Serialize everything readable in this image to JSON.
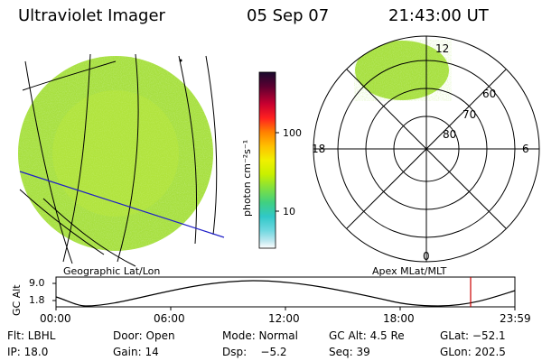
{
  "header": {
    "instrument": "Ultraviolet Imager",
    "date": "05 Sep 07",
    "time": "21:43:00 UT"
  },
  "colorbar": {
    "unit_label": "photon cm⁻²s⁻¹",
    "ticks": [
      "100",
      "10"
    ],
    "colors": [
      "#1a0a2e",
      "#5a0030",
      "#c80030",
      "#ff2020",
      "#ff8000",
      "#ffc000",
      "#f0f000",
      "#c8f000",
      "#80e040",
      "#40d080",
      "#30c8c8",
      "#70d8e0",
      "#c0e8f0",
      "#ffffff"
    ]
  },
  "left_panel": {
    "caption": "Geographic Lat/Lon"
  },
  "right_panel": {
    "caption": "Apex MLat/MLT",
    "mlt_labels": {
      "top": "12",
      "left": "18",
      "right": "6",
      "bottom": "0"
    },
    "mlat_labels": [
      "60",
      "70",
      "80"
    ]
  },
  "altitude_plot": {
    "ylabel": "GC Alt",
    "yticks": [
      "9.0",
      "1.8"
    ],
    "xticks": [
      "00:00",
      "06:00",
      "12:00",
      "18:00",
      "23:59"
    ],
    "marker_color": "#cc0000"
  },
  "status": {
    "flt": "Flt: LBHL",
    "door": "Door: Open",
    "mode": "Mode: Normal",
    "gc_alt": "GC Alt: 4.5 Re",
    "glat": "GLat: −52.1",
    "ip": "IP: 18.0",
    "gain": "Gain: 14",
    "dsp": "Dsp:    −5.2",
    "seq": "Seq: 39",
    "glon": "GLon: 202.5"
  }
}
